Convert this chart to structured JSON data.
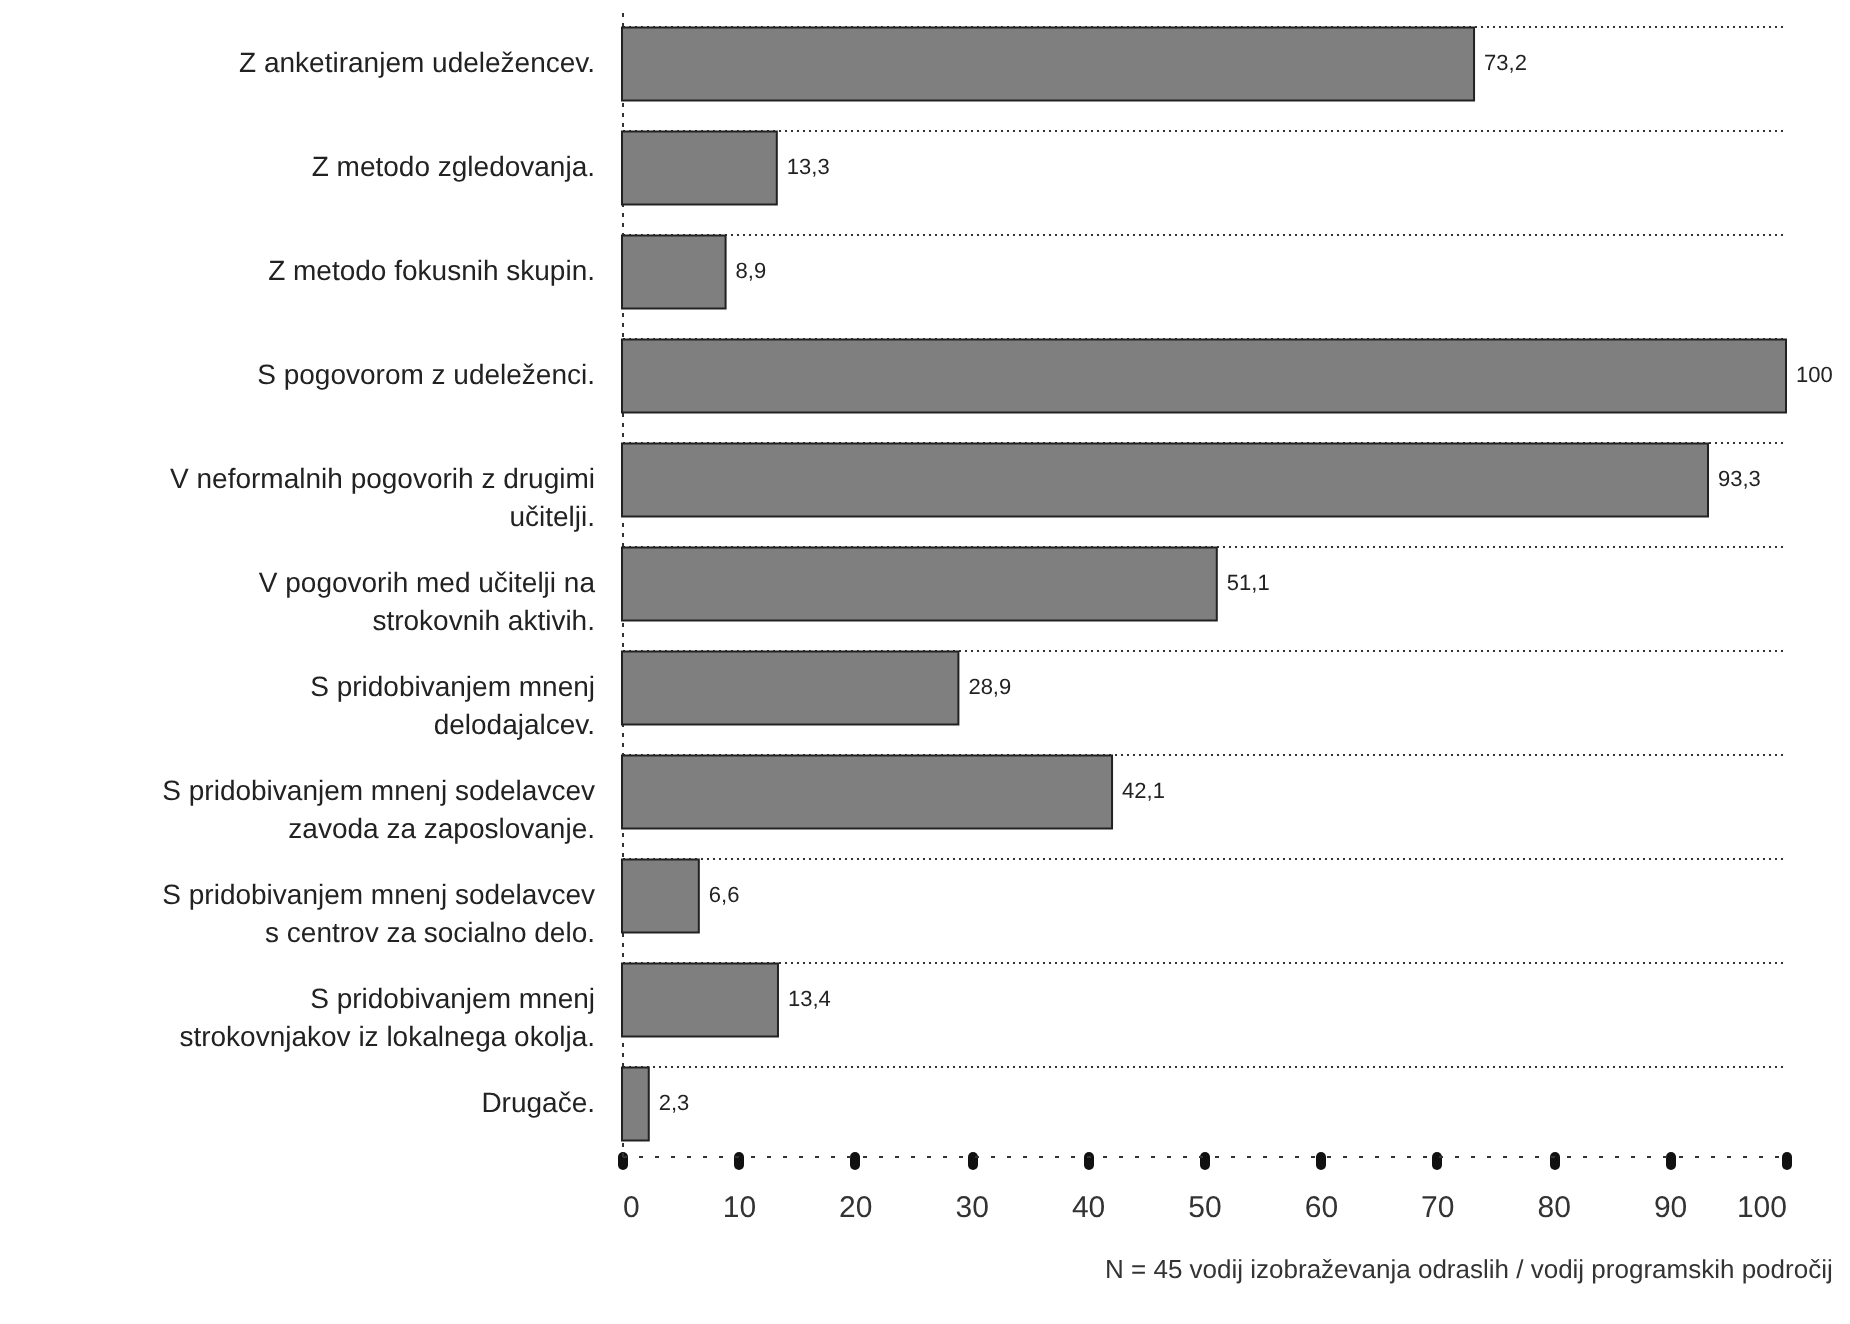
{
  "chart_data": {
    "type": "bar",
    "orientation": "horizontal",
    "categories": [
      "Z anketiranjem udeležencev.",
      "Z metodo zgledovanja.",
      "Z metodo fokusnih skupin.",
      "S pogovorom z udeleženci.",
      "V neformalnih pogovorih z drugimi\nučitelji.",
      "V pogovorih med učitelji na\nstrokovnih aktivih.",
      "S pridobivanjem mnenj\ndelodajalcev.",
      "S pridobivanjem mnenj sodelavcev\nzavoda za zaposlovanje.",
      "S pridobivanjem mnenj sodelavcev\ns centrov za socialno delo.",
      "S pridobivanjem mnenj\nstrokovnjakov iz lokalnega okolja.",
      "Drugače."
    ],
    "values": [
      73.2,
      13.3,
      8.9,
      100,
      93.3,
      51.1,
      28.9,
      42.1,
      6.6,
      13.4,
      2.3
    ],
    "value_labels": [
      "73,2",
      "13,3",
      "8,9",
      "100",
      "93,3",
      "51,1",
      "28,9",
      "42,1",
      "6,6",
      "13,4",
      "2,3"
    ],
    "color": "#7f7f7f",
    "xlim": [
      0,
      100
    ],
    "xticks": [
      0,
      10,
      20,
      30,
      40,
      50,
      60,
      70,
      80,
      90,
      100
    ],
    "grid": "y",
    "annotations": [
      "N = 45 vodij izobraževanja odraslih / vodij programskih področij"
    ]
  }
}
